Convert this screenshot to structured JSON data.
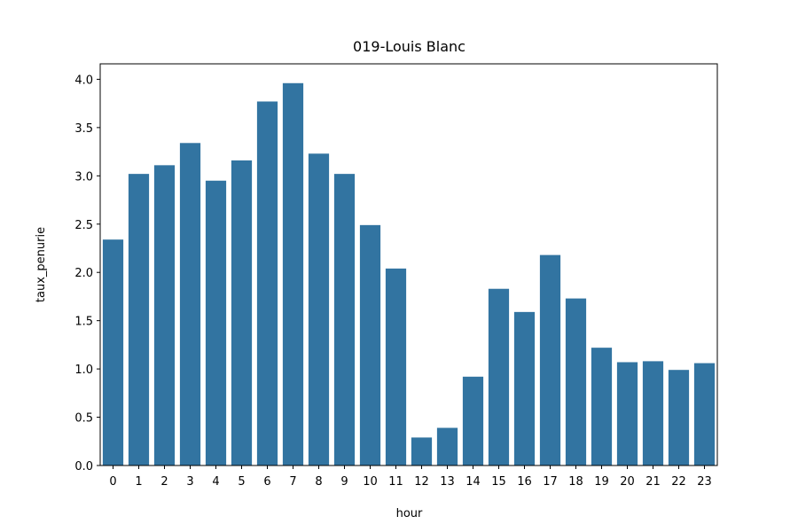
{
  "chart_data": {
    "type": "bar",
    "title": "019-Louis Blanc",
    "xlabel": "hour",
    "ylabel": "taux_penurie",
    "categories": [
      "0",
      "1",
      "2",
      "3",
      "4",
      "5",
      "6",
      "7",
      "8",
      "9",
      "10",
      "11",
      "12",
      "13",
      "14",
      "15",
      "16",
      "17",
      "18",
      "19",
      "20",
      "21",
      "22",
      "23"
    ],
    "values": [
      2.34,
      3.02,
      3.11,
      3.34,
      2.95,
      3.16,
      3.77,
      3.96,
      3.23,
      3.02,
      2.49,
      2.04,
      0.29,
      0.39,
      0.92,
      1.83,
      1.59,
      2.18,
      1.73,
      1.22,
      1.07,
      1.08,
      0.99,
      1.06
    ],
    "ylim": [
      0,
      4.16
    ],
    "yticks": [
      "0.0",
      "0.5",
      "1.0",
      "1.5",
      "2.0",
      "2.5",
      "3.0",
      "3.5",
      "4.0"
    ],
    "bar_color": "#3274a1",
    "grid": false
  }
}
